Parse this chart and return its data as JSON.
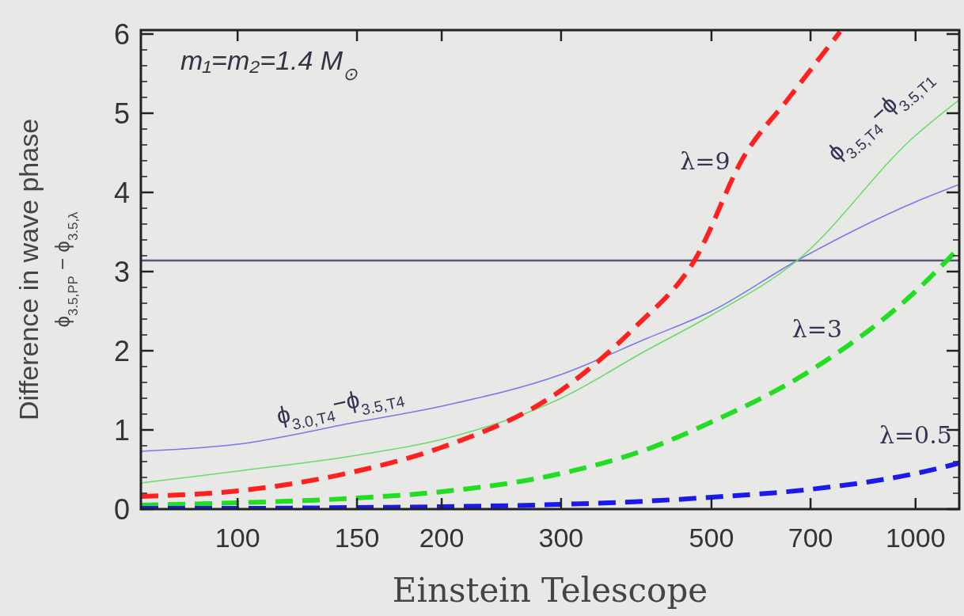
{
  "chart_data": {
    "type": "line",
    "xlabel": "Einstein Telescope",
    "ylabel": "Difference in wave phase\nϕ$_{3.5,PP}$ − ϕ$_{3.5,λ}$",
    "log": "x",
    "grid": false,
    "marker": "none",
    "xlim": [
      72,
      1160
    ],
    "xticks": [
      100,
      150,
      200,
      300,
      500,
      700,
      1000
    ],
    "ylim": [
      0,
      6.05
    ],
    "yticks": [
      0,
      1,
      2,
      3,
      4,
      5,
      6
    ],
    "ref_lines": [
      {
        "axis": "y",
        "value": 3.14,
        "color": "#555577"
      }
    ],
    "annotations": [
      "m₁=m₂=1.4 M$_{⊙}$"
    ],
    "series": [
      {
        "name": "ϕ$_{3.0,T4}$−ϕ$_{3.5,T4}$",
        "color": "#7777ee",
        "line_style": "solid",
        "x": [
          72,
          100,
          150,
          200,
          300,
          400,
          500,
          669,
          1000,
          1160
        ],
        "values": [
          0.73,
          0.82,
          1.1,
          1.3,
          1.7,
          2.15,
          2.5,
          3.14,
          3.88,
          4.1
        ]
      },
      {
        "name": "ϕ$_{3.5,T4}$−ϕ$_{3.5,T1}$",
        "color": "#66dd66",
        "line_style": "solid",
        "x": [
          72,
          100,
          150,
          200,
          300,
          400,
          500,
          669,
          1000,
          1160
        ],
        "values": [
          0.33,
          0.48,
          0.68,
          0.88,
          1.4,
          2.0,
          2.45,
          3.14,
          4.72,
          5.17
        ]
      },
      {
        "name": "λ=9",
        "color": "#ff2020",
        "line_style": "dashed",
        "x": [
          72,
          100,
          150,
          200,
          300,
          386,
          472,
          558,
          650,
          774
        ],
        "values": [
          0.16,
          0.23,
          0.48,
          0.78,
          1.5,
          2.3,
          3.14,
          4.45,
          5.19,
          6.03
        ]
      },
      {
        "name": "λ=3",
        "color": "#22dd22",
        "line_style": "dashed",
        "x": [
          72,
          100,
          150,
          200,
          300,
          400,
          500,
          700,
          1000,
          1160
        ],
        "values": [
          0.05,
          0.08,
          0.14,
          0.22,
          0.45,
          0.75,
          1.1,
          1.75,
          2.75,
          3.3
        ]
      },
      {
        "name": "λ=0.5",
        "color": "#1a1aee",
        "line_style": "dashed",
        "x": [
          72,
          100,
          150,
          200,
          300,
          400,
          500,
          700,
          1000,
          1160
        ],
        "values": [
          0.01,
          0.01,
          0.02,
          0.03,
          0.06,
          0.1,
          0.15,
          0.25,
          0.45,
          0.58
        ]
      }
    ]
  }
}
